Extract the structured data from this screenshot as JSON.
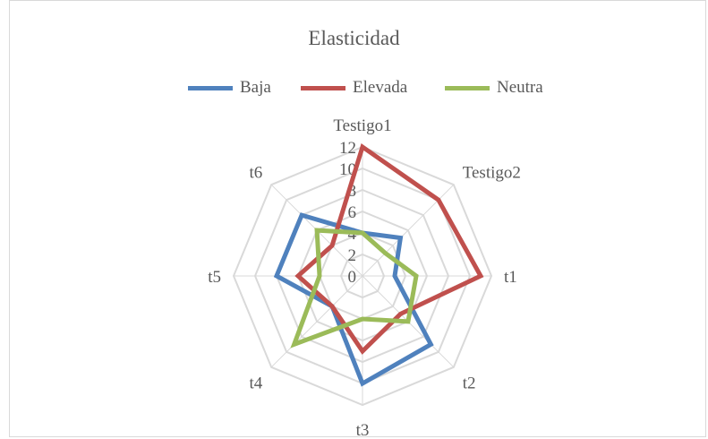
{
  "chart_data": {
    "type": "radar",
    "title": "Elasticidad",
    "categories": [
      "Testigo1",
      "Testigo2",
      "t1",
      "t2",
      "t3",
      "t4",
      "t5",
      "t6"
    ],
    "rlim": [
      0,
      12
    ],
    "ticks": [
      "0",
      "2",
      "4",
      "6",
      "8",
      "10",
      "12"
    ],
    "tick_values": [
      0,
      2,
      4,
      6,
      8,
      10,
      12
    ],
    "grid": true,
    "legend_position": "top",
    "series": [
      {
        "name": "Baja",
        "color": "#4f81bd",
        "values": [
          4,
          5,
          3,
          9,
          10,
          4,
          8,
          8
        ]
      },
      {
        "name": "Elevada",
        "color": "#c0504d",
        "values": [
          12,
          10,
          11,
          5,
          7,
          4,
          6,
          4
        ]
      },
      {
        "name": "Neutra",
        "color": "#9bbb59",
        "values": [
          4,
          3,
          5,
          6,
          4,
          9,
          4,
          6
        ]
      }
    ]
  }
}
